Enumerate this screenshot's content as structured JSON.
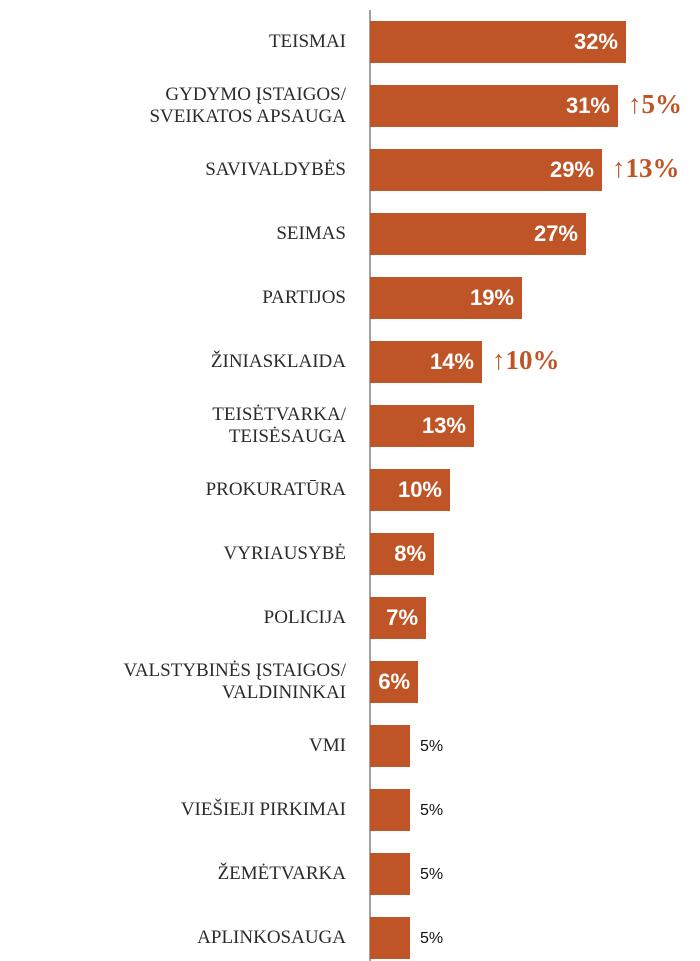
{
  "chart_data": {
    "type": "bar",
    "orientation": "horizontal",
    "categories": [
      "TEISMAI",
      "GYDYMO ĮSTAIGOS/\nSVEIKATOS APSAUGA",
      "SAVIVALDYBĖS",
      "SEIMAS",
      "PARTIJOS",
      "ŽINIASKLAIDA",
      "TEISĖTVARKA/\nTEISĖSAUGA",
      "PROKURATŪRA",
      "VYRIAUSYBĖ",
      "POLICIJA",
      "VALSTYBINĖS ĮSTAIGOS/\nVALDININKAI",
      "VMI",
      "VIEŠIEJI PIRKIMAI",
      "ŽEMĖTVARKA",
      "APLINKOSAUGA"
    ],
    "values": [
      32,
      31,
      29,
      27,
      19,
      14,
      13,
      10,
      8,
      7,
      6,
      5,
      5,
      5,
      5
    ],
    "value_labels": [
      "32%",
      "31%",
      "29%",
      "27%",
      "19%",
      "14%",
      "13%",
      "10%",
      "8%",
      "7%",
      "6%",
      "5%",
      "5%",
      "5%",
      "5%"
    ],
    "annotations": [
      null,
      "↑5%",
      "↑13%",
      null,
      null,
      "↑10%",
      null,
      null,
      null,
      null,
      null,
      null,
      null,
      null,
      null
    ],
    "color": "#bf5527"
  }
}
